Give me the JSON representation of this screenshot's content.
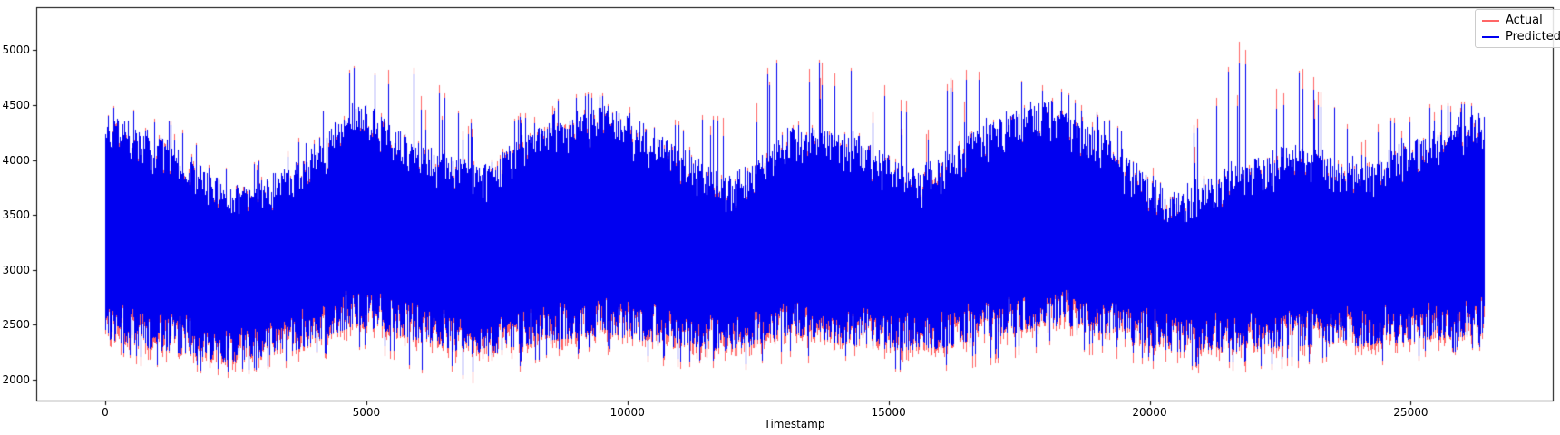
{
  "chart_data": {
    "type": "line",
    "title": "",
    "xlabel": "Timestamp",
    "ylabel": "",
    "x_ticks": [
      0,
      5000,
      10000,
      15000,
      20000,
      25000
    ],
    "y_ticks": [
      2000,
      2500,
      3000,
      3500,
      4000,
      4500,
      5000
    ],
    "xlim": [
      -1320,
      27720
    ],
    "ylim": [
      1810,
      5390
    ],
    "x_range": [
      0,
      26400
    ],
    "y_observed_range": [
      1980,
      5240
    ],
    "grid": false,
    "legend_position": "upper right",
    "background_color": "#ffffff",
    "spine_color": "#000000",
    "series": [
      {
        "name": "Actual",
        "color": "#ff6666"
      },
      {
        "name": "Predicted",
        "color": "#0000f0"
      }
    ],
    "envelope": {
      "comment_visible_structure": "dense noisy band; values are data-units read from axes",
      "t": [
        0,
        1200,
        2400,
        3600,
        4800,
        6000,
        7200,
        8400,
        9600,
        10800,
        12000,
        13200,
        14400,
        15600,
        16800,
        18000,
        19200,
        20400,
        21600,
        22800,
        24000,
        25200,
        26400
      ],
      "upper_typical": [
        4450,
        4200,
        3750,
        3950,
        4550,
        4150,
        3950,
        4350,
        4500,
        4200,
        3850,
        4350,
        4250,
        3900,
        4350,
        4550,
        4200,
        3700,
        3950,
        4150,
        3950,
        4250,
        4450
      ],
      "upper_peak": [
        4520,
        4380,
        3900,
        4150,
        4920,
        4900,
        4300,
        4550,
        4650,
        4400,
        4450,
        5240,
        4870,
        4600,
        4900,
        4750,
        4400,
        3900,
        5050,
        4940,
        4300,
        4500,
        4550
      ],
      "lower_typical": [
        2350,
        2250,
        2150,
        2250,
        2500,
        2350,
        2200,
        2350,
        2400,
        2300,
        2250,
        2400,
        2300,
        2250,
        2350,
        2500,
        2400,
        2250,
        2250,
        2300,
        2300,
        2350,
        2400
      ],
      "lower_min": [
        2250,
        2100,
        2050,
        2150,
        2300,
        2100,
        1980,
        2200,
        2250,
        2150,
        2100,
        2200,
        2150,
        2050,
        2150,
        2300,
        2250,
        2100,
        2100,
        2150,
        2150,
        2200,
        2300
      ]
    },
    "render_params": {
      "noise_seed": 1337,
      "spike_prob": 0.07,
      "dip_prob": 0.07,
      "core_depth": 380,
      "bottom_jitter": 330,
      "red_cap": 5260
    }
  }
}
